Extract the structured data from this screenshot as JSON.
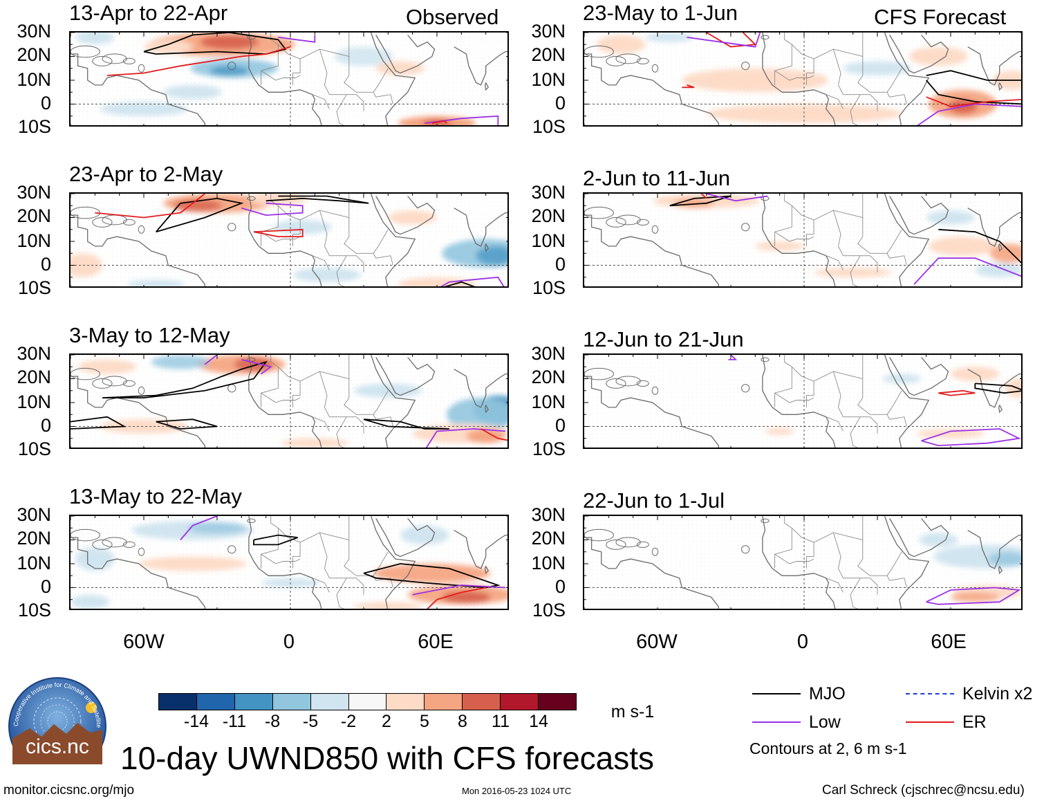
{
  "observed_label": "Observed",
  "forecast_label": "CFS Forecast",
  "panels": {
    "obs": [
      {
        "title": "13-Apr to 22-Apr"
      },
      {
        "title": "23-Apr to 2-May"
      },
      {
        "title": "3-May to 12-May"
      },
      {
        "title": "13-May to 22-May"
      }
    ],
    "fc": [
      {
        "title": "23-May to 1-Jun"
      },
      {
        "title": "2-Jun to 11-Jun"
      },
      {
        "title": "12-Jun to 21-Jun"
      },
      {
        "title": "22-Jun to 1-Jul"
      }
    ]
  },
  "lat_labels": [
    "30N",
    "20N",
    "10N",
    "0",
    "10S"
  ],
  "lon_labels": [
    "60W",
    "0",
    "60E"
  ],
  "colorbar": {
    "colors": [
      "#08306b",
      "#2166ac",
      "#4393c3",
      "#92c5de",
      "#d1e5f0",
      "#f7f7f7",
      "#fddbc7",
      "#f4a582",
      "#d6604d",
      "#b2182b",
      "#67001f"
    ],
    "ticks": [
      "-14",
      "-11",
      "-8",
      "-5",
      "-2",
      "2",
      "5",
      "8",
      "11",
      "14"
    ],
    "units": "m s-1"
  },
  "legend": {
    "items": [
      {
        "label": "MJO",
        "color": "#000000",
        "style": "solid"
      },
      {
        "label": "Kelvin x2",
        "color": "#1f3fd6",
        "style": "dashed"
      },
      {
        "label": "Low",
        "color": "#9b30e8",
        "style": "solid"
      },
      {
        "label": "ER",
        "color": "#e31a1c",
        "style": "solid"
      }
    ],
    "note": "Contours at 2, 6 m s-1"
  },
  "main_title": "10-day UWND850 with CFS forecasts",
  "logo_text": "cics.nc",
  "logo_ring_text": "Cooperative Institute for Climate and Satellites",
  "footer": {
    "url": "monitor.cicsnc.org/mjo",
    "timestamp": "Mon 2016-05-23 1024 UTC",
    "credit": "Carl Schreck (cjschrec@ncsu.edu)"
  }
}
